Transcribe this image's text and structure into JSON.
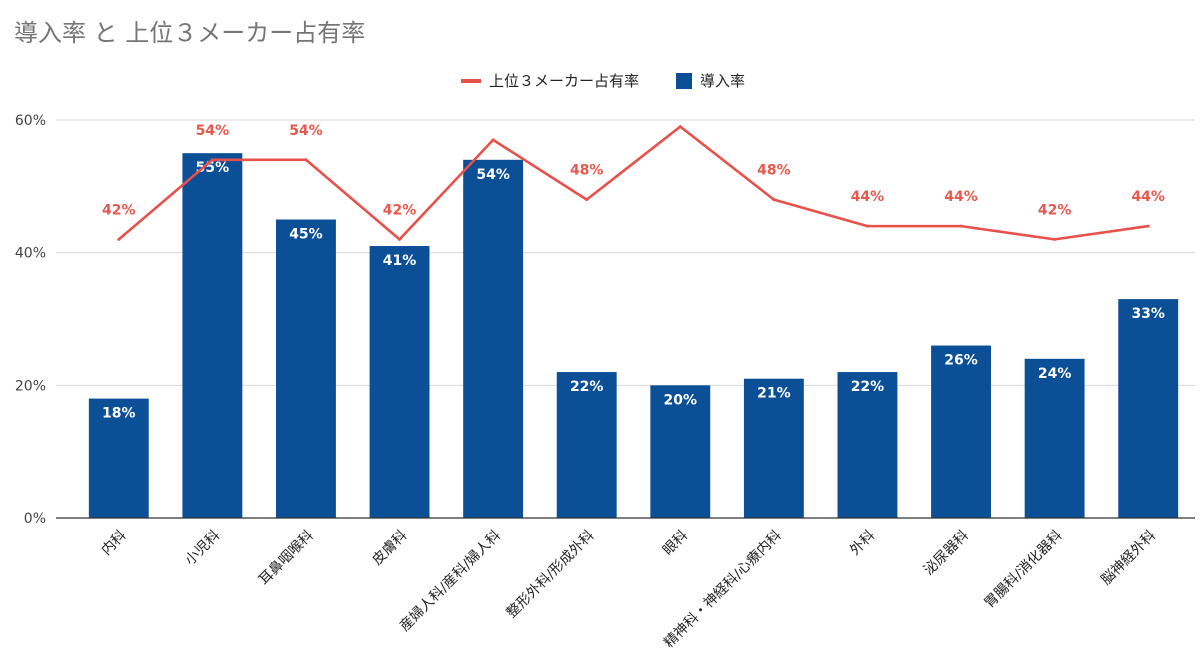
{
  "chart_data": {
    "type": "bar",
    "title": "導入率 と 上位３メーカー占有率",
    "categories": [
      "内科",
      "小児科",
      "耳鼻咽喉科",
      "皮膚科",
      "産婦人科/産科/婦人科",
      "整形外科/形成外科",
      "眼科",
      "精神科・神経科/心療内科",
      "外科",
      "泌尿器科",
      "胃腸科/消化器科",
      "脳神経外科"
    ],
    "series": [
      {
        "name": "導入率",
        "type": "bar",
        "color": "#0b4f96",
        "values": [
          18,
          55,
          45,
          41,
          54,
          22,
          20,
          21,
          22,
          26,
          24,
          33
        ],
        "labels": [
          "18%",
          "55%",
          "45%",
          "41%",
          "54%",
          "22%",
          "20%",
          "21%",
          "22%",
          "26%",
          "24%",
          "33%"
        ]
      },
      {
        "name": "上位３メーカー占有率",
        "type": "line",
        "color": "#e8504a",
        "values": [
          42,
          54,
          54,
          42,
          57,
          48,
          59,
          48,
          44,
          44,
          42,
          44
        ],
        "labels": [
          "42%",
          "54%",
          "54%",
          "42%",
          "",
          "48%",
          "",
          "48%",
          "44%",
          "44%",
          "42%",
          "44%"
        ]
      }
    ],
    "ylim": [
      0,
      60
    ],
    "yticks": [
      "0%",
      "20%",
      "40%",
      "60%"
    ],
    "ytick_values": [
      0,
      20,
      40,
      60
    ],
    "legend": "top-center",
    "grid": true,
    "xlabel": "",
    "ylabel": ""
  }
}
